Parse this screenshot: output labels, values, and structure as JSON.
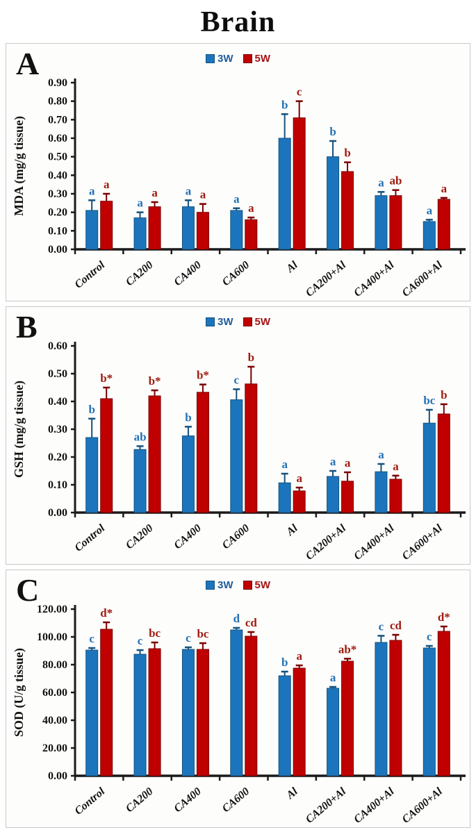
{
  "title": "Brain",
  "legend": {
    "series1": "3W",
    "series2": "5W"
  },
  "colors": {
    "series1": "#1C75BC",
    "series1_edge": "#14527E",
    "series2": "#C00000",
    "series2_edge": "#7A0000",
    "letter1": "#2470B3",
    "letter2": "#A01C10",
    "legend1_text": "#1F5C99",
    "legend2_text": "#A31515",
    "axis": "#1a1a1a"
  },
  "chart_data": [
    {
      "type": "bar",
      "panel": "A",
      "ylabel": "MDA (mg/g tissue)",
      "ylim": [
        0,
        0.9
      ],
      "ytick_step": 0.1,
      "ytick_decimals": 2,
      "grid": false,
      "legend_position": "top-center",
      "categories": [
        "Control",
        "CA200",
        "CA400",
        "CA600",
        "Al",
        "CA200+Al",
        "CA400+Al",
        "CA600+Al"
      ],
      "series": [
        {
          "name": "3W",
          "values": [
            0.21,
            0.17,
            0.23,
            0.21,
            0.6,
            0.5,
            0.29,
            0.15
          ],
          "errors": [
            0.055,
            0.03,
            0.035,
            0.012,
            0.13,
            0.085,
            0.02,
            0.01
          ],
          "letters": [
            "a",
            "a",
            "a",
            "a",
            "b",
            "b",
            "a",
            "a"
          ]
        },
        {
          "name": "5W",
          "values": [
            0.26,
            0.23,
            0.2,
            0.16,
            0.71,
            0.42,
            0.29,
            0.27
          ],
          "errors": [
            0.04,
            0.025,
            0.045,
            0.012,
            0.09,
            0.05,
            0.03,
            0.008
          ],
          "letters": [
            "a",
            "a",
            "a",
            "a",
            "c",
            "b",
            "ab",
            "a"
          ]
        }
      ]
    },
    {
      "type": "bar",
      "panel": "B",
      "ylabel": "GSH (mg/g tissue)",
      "ylim": [
        0,
        0.6
      ],
      "ytick_step": 0.1,
      "ytick_decimals": 2,
      "grid": false,
      "legend_position": "top-center",
      "categories": [
        "Control",
        "CA200",
        "CA400",
        "CA600",
        "Al",
        "CA200+Al",
        "CA400+Al",
        "CA600+Al"
      ],
      "series": [
        {
          "name": "3W",
          "values": [
            0.27,
            0.227,
            0.276,
            0.406,
            0.107,
            0.13,
            0.147,
            0.322
          ],
          "errors": [
            0.068,
            0.012,
            0.033,
            0.038,
            0.033,
            0.02,
            0.028,
            0.048
          ],
          "letters": [
            "b",
            "ab",
            "b",
            "c",
            "a",
            "a",
            "a",
            "bc"
          ]
        },
        {
          "name": "5W",
          "values": [
            0.41,
            0.42,
            0.433,
            0.463,
            0.078,
            0.113,
            0.12,
            0.355
          ],
          "errors": [
            0.04,
            0.02,
            0.028,
            0.062,
            0.012,
            0.032,
            0.013,
            0.035
          ],
          "letters": [
            "b*",
            "b*",
            "b*",
            "b",
            "a",
            "a",
            "a",
            "b"
          ]
        }
      ]
    },
    {
      "type": "bar",
      "panel": "C",
      "ylabel": "SOD (U/g tissue)",
      "ylim": [
        0,
        120
      ],
      "ytick_step": 20,
      "ytick_decimals": 2,
      "grid": false,
      "legend_position": "top-center",
      "categories": [
        "Control",
        "CA200",
        "CA400",
        "CA600",
        "Al",
        "CA200+Al",
        "CA400+Al",
        "CA600+Al"
      ],
      "series": [
        {
          "name": "3W",
          "values": [
            90.5,
            87.5,
            91.0,
            105.0,
            72.0,
            63.0,
            96.0,
            92.0
          ],
          "errors": [
            1.5,
            3.0,
            1.5,
            1.5,
            3.0,
            1.0,
            4.8,
            1.5
          ],
          "letters": [
            "c",
            "c",
            "c",
            "d",
            "b",
            "a",
            "c",
            "c"
          ]
        },
        {
          "name": "5W",
          "values": [
            105.5,
            91.5,
            91.0,
            100.5,
            77.5,
            82.5,
            97.5,
            104.0
          ],
          "errors": [
            5.0,
            4.5,
            4.5,
            3.0,
            2.0,
            1.8,
            4.0,
            3.5
          ],
          "letters": [
            "d*",
            "bc",
            "bc",
            "cd",
            "a",
            "ab*",
            "cd",
            "d*"
          ]
        }
      ]
    }
  ]
}
